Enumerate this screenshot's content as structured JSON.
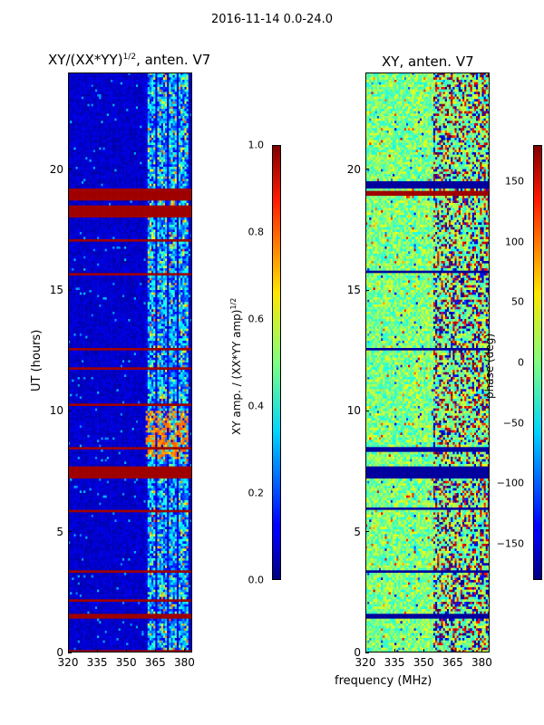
{
  "figure": {
    "title": "2016-11-14 0.0-24.0",
    "shared_xlabel": "frequency (MHz)"
  },
  "colors": {
    "jet_low": "#00007f",
    "jet_mid": "#7fff7f",
    "jet_high": "#7f0000",
    "background": "#ffffff"
  },
  "chart_data": [
    {
      "type": "heatmap",
      "title": "XY/(XX*YY)",
      "title_sup": "1/2",
      "title_suffix": ", anten. V7",
      "xlabel": "",
      "ylabel": "UT (hours)",
      "xlim": [
        320,
        384
      ],
      "ylim": [
        0,
        24
      ],
      "xticks": [
        "320",
        "335",
        "350",
        "365",
        "380"
      ],
      "yticks": [
        "0",
        "5",
        "10",
        "15",
        "20"
      ],
      "xtick_values": [
        320,
        335,
        350,
        365,
        380
      ],
      "ytick_values": [
        0,
        5,
        10,
        15,
        20
      ],
      "colorbar": {
        "label": "XY amp. / (XX*YY amp)",
        "label_sup": "1/2",
        "range": [
          0.0,
          1.0
        ],
        "ticks": [
          "0.0",
          "0.2",
          "0.4",
          "0.6",
          "0.8",
          "1.0"
        ],
        "tick_values": [
          0.0,
          0.2,
          0.4,
          0.6,
          0.8,
          1.0
        ]
      },
      "flagged_ut_bands": [
        [
          0.0,
          0.1
        ],
        [
          1.4,
          1.6
        ],
        [
          2.1,
          2.2
        ],
        [
          3.3,
          3.4
        ],
        [
          5.8,
          5.9
        ],
        [
          7.2,
          7.7
        ],
        [
          8.4,
          8.5
        ],
        [
          10.2,
          10.3
        ],
        [
          11.7,
          11.8
        ],
        [
          12.5,
          12.6
        ],
        [
          15.6,
          15.7
        ],
        [
          17.0,
          17.1
        ],
        [
          18.0,
          18.5
        ],
        [
          18.7,
          19.2
        ]
      ],
      "bright_band_mhz": [
        360,
        382
      ],
      "peak_value": 0.8
    },
    {
      "type": "heatmap",
      "title": "XY, anten. V7",
      "xlabel": "",
      "ylabel": "",
      "xlim": [
        320,
        384
      ],
      "ylim": [
        0,
        24
      ],
      "xticks": [
        "320",
        "335",
        "350",
        "365",
        "380"
      ],
      "yticks": [
        "0",
        "5",
        "10",
        "15",
        "20"
      ],
      "xtick_values": [
        320,
        335,
        350,
        365,
        380
      ],
      "ytick_values": [
        0,
        5,
        10,
        15,
        20
      ],
      "colorbar": {
        "label": "phase (deg)",
        "range": [
          -180,
          180
        ],
        "ticks": [
          "−150",
          "−100",
          "−50",
          "0",
          "50",
          "100",
          "150"
        ],
        "tick_values": [
          -150,
          -100,
          -50,
          0,
          50,
          100,
          150
        ]
      },
      "flagged_ut_bands_low": [
        [
          1.4,
          1.6
        ],
        [
          3.3,
          3.4
        ],
        [
          5.9,
          6.0
        ],
        [
          7.2,
          7.7
        ],
        [
          8.3,
          8.5
        ],
        [
          12.5,
          12.6
        ],
        [
          15.7,
          15.8
        ],
        [
          19.2,
          19.5
        ]
      ],
      "flagged_ut_bands_high": [
        [
          18.9,
          19.1
        ]
      ]
    }
  ]
}
